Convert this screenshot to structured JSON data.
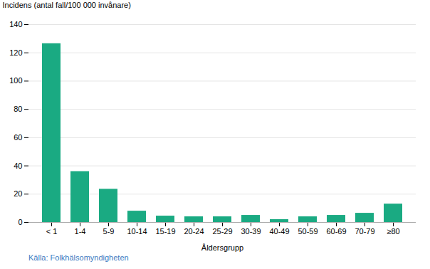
{
  "chart_data": {
    "type": "bar",
    "categories": [
      "< 1",
      "1-4",
      "5-9",
      "10-14",
      "15-19",
      "20-24",
      "25-29",
      "30-39",
      "40-49",
      "50-59",
      "60-69",
      "70-79",
      "≥80"
    ],
    "values": [
      126.5,
      36,
      23.5,
      8,
      4.5,
      4,
      4,
      5,
      2,
      4,
      5,
      6.5,
      13
    ],
    "color": "#1aaa82",
    "ylabel": "Incidens (antal fall/100 000 invånare)",
    "xlabel": "Åldersgrupp",
    "ylim": [
      0,
      140
    ],
    "yticks": [
      0,
      20,
      40,
      60,
      80,
      100,
      120,
      140
    ],
    "grid": true,
    "source": "Källa: Folkhälsomyndigheten"
  }
}
